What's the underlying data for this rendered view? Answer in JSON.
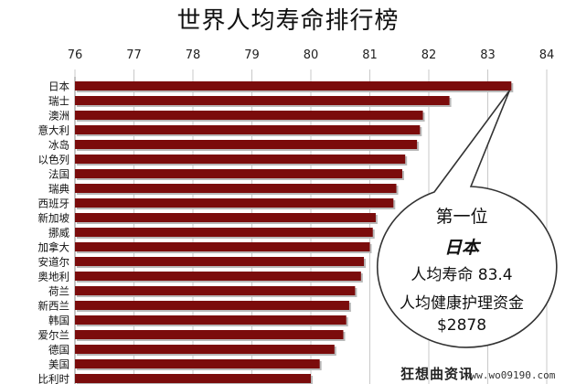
{
  "chart_data": {
    "type": "bar",
    "orientation": "horizontal",
    "title": "世界人均寿命排行榜",
    "xlim": [
      76,
      84
    ],
    "xticks": [
      "76",
      "77",
      "78",
      "79",
      "80",
      "81",
      "82",
      "83",
      "84"
    ],
    "x_axis_position": "top",
    "grid": true,
    "bar_color": "#7b0c0c",
    "categories": [
      "日本",
      "瑞士",
      "澳洲",
      "意大利",
      "冰岛",
      "以色列",
      "法国",
      "瑞典",
      "西班牙",
      "新加坡",
      "挪威",
      "加拿大",
      "安道尔",
      "奥地利",
      "荷兰",
      "新西兰",
      "韩国",
      "爱尔兰",
      "德国",
      "美国",
      "比利时"
    ],
    "values": [
      83.4,
      82.35,
      81.9,
      81.85,
      81.8,
      81.6,
      81.55,
      81.45,
      81.4,
      81.1,
      81.05,
      81.0,
      80.9,
      80.85,
      80.75,
      80.65,
      80.6,
      80.55,
      80.4,
      80.15,
      80.0
    ]
  },
  "callout": {
    "rank": "第一位",
    "country": "日本",
    "life_expectancy": "人均寿命 83.4",
    "health_spending_label": "人均健康护理资金",
    "health_spending_value": "$2878"
  },
  "watermark": {
    "text": "狂想曲资讯",
    "url": "www.wo09190.com"
  }
}
